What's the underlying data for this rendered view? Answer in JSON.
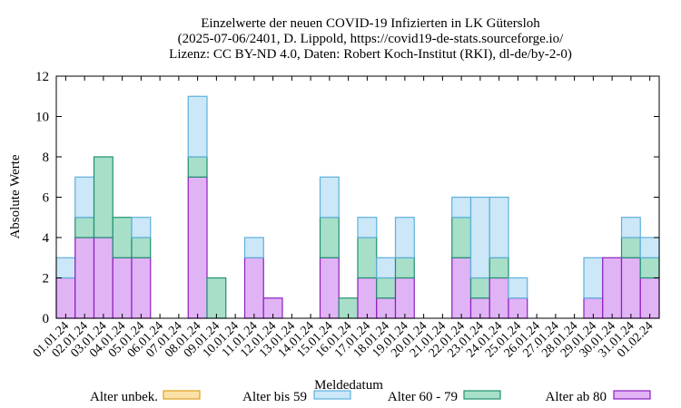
{
  "chart_data": {
    "type": "bar",
    "stacked": true,
    "title_lines": [
      "Einzelwerte der neuen COVID-19 Infizierten in LK Gütersloh",
      "(2025-07-06/2401, D. Lippold, https://covid19-de-stats.sourceforge.io/",
      "Lizenz: CC BY-ND 4.0, Daten: Robert Koch-Institut (RKI), dl-de/by-2-0)"
    ],
    "xlabel": "Meldedatum",
    "ylabel": "Absolute Werte",
    "ylim": [
      0,
      12
    ],
    "yticks": [
      0,
      2,
      4,
      6,
      8,
      10,
      12
    ],
    "categories": [
      "01.01.24",
      "02.01.24",
      "03.01.24",
      "04.01.24",
      "05.01.24",
      "06.01.24",
      "07.01.24",
      "08.01.24",
      "09.01.24",
      "10.01.24",
      "11.01.24",
      "12.01.24",
      "13.01.24",
      "14.01.24",
      "15.01.24",
      "16.01.24",
      "17.01.24",
      "18.01.24",
      "19.01.24",
      "20.01.24",
      "21.01.24",
      "22.01.24",
      "23.01.24",
      "24.01.24",
      "25.01.24",
      "26.01.24",
      "27.01.24",
      "28.01.24",
      "29.01.24",
      "30.01.24",
      "31.01.24",
      "01.02.24"
    ],
    "series": [
      {
        "name": "Alter ab 80",
        "fill": "#e0b3f5",
        "stroke": "#8e1ec0",
        "values": [
          2,
          4,
          4,
          3,
          3,
          0,
          0,
          7,
          0,
          0,
          3,
          1,
          0,
          0,
          3,
          0,
          2,
          1,
          2,
          0,
          0,
          3,
          1,
          2,
          1,
          0,
          0,
          0,
          1,
          3,
          3,
          2
        ]
      },
      {
        "name": "Alter 60 - 79",
        "fill": "#a8dfc9",
        "stroke": "#1e9070",
        "values": [
          0,
          1,
          4,
          2,
          1,
          0,
          0,
          1,
          2,
          0,
          0,
          0,
          0,
          0,
          2,
          1,
          2,
          1,
          1,
          0,
          0,
          2,
          1,
          1,
          0,
          0,
          0,
          0,
          0,
          0,
          1,
          1
        ]
      },
      {
        "name": "Alter bis 59",
        "fill": "#cce7f7",
        "stroke": "#5cb0dd",
        "values": [
          1,
          2,
          0,
          0,
          1,
          0,
          0,
          3,
          0,
          0,
          1,
          0,
          0,
          0,
          2,
          0,
          1,
          1,
          2,
          0,
          0,
          1,
          4,
          3,
          1,
          0,
          0,
          0,
          2,
          0,
          1,
          1
        ]
      },
      {
        "name": "Alter unbek.",
        "fill": "#fbe1a8",
        "stroke": "#e0a020",
        "values": [
          0,
          0,
          0,
          0,
          0,
          0,
          0,
          0,
          0,
          0,
          0,
          0,
          0,
          0,
          0,
          0,
          0,
          0,
          0,
          0,
          0,
          0,
          0,
          0,
          0,
          0,
          0,
          0,
          0,
          0,
          0,
          0
        ]
      }
    ],
    "legend": {
      "placement": "bottom",
      "order": [
        "Alter unbek.",
        "Alter bis 59",
        "Alter 60 - 79",
        "Alter ab 80"
      ]
    },
    "grid": false
  }
}
